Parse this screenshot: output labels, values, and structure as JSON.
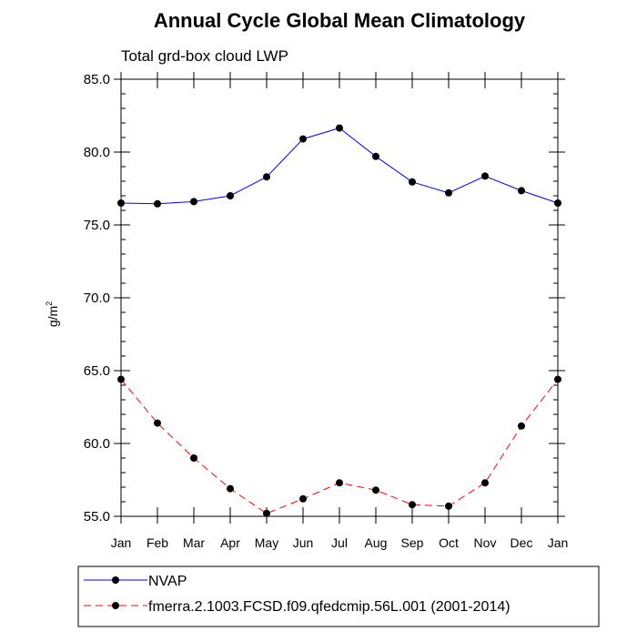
{
  "chart_data": {
    "type": "line",
    "title": "Annual Cycle Global Mean Climatology",
    "subtitle": "Total grd-box cloud LWP",
    "ylabel": "g/m",
    "ylabel_sup": "2",
    "xlabel": "",
    "categories": [
      "Jan",
      "Feb",
      "Mar",
      "Apr",
      "May",
      "Jun",
      "Jul",
      "Aug",
      "Sep",
      "Oct",
      "Nov",
      "Dec",
      "Jan"
    ],
    "ylim": [
      55.0,
      85.0
    ],
    "yticks": [
      "85.0",
      "80.0",
      "75.0",
      "70.0",
      "65.0",
      "60.0",
      "55.0"
    ],
    "ytick_values": [
      85,
      80,
      75,
      70,
      65,
      60,
      55
    ],
    "y_minor_step": 1,
    "grid": false,
    "legend_position": "bottom",
    "series": [
      {
        "name": "NVAP",
        "color": "#0000ff",
        "dash": "solid",
        "values": [
          76.5,
          76.45,
          76.6,
          77.0,
          78.3,
          80.9,
          81.65,
          79.7,
          77.95,
          77.2,
          78.35,
          77.35,
          76.5
        ]
      },
      {
        "name": "fmerra.2.1003.FCSD.f09.qfedcmip.56L.001 (2001-2014)",
        "color": "#ff0000",
        "dash": "dashed",
        "values": [
          64.4,
          61.4,
          59.0,
          56.9,
          55.2,
          56.2,
          57.3,
          56.8,
          55.8,
          55.7,
          57.3,
          61.2,
          64.4
        ]
      }
    ]
  }
}
